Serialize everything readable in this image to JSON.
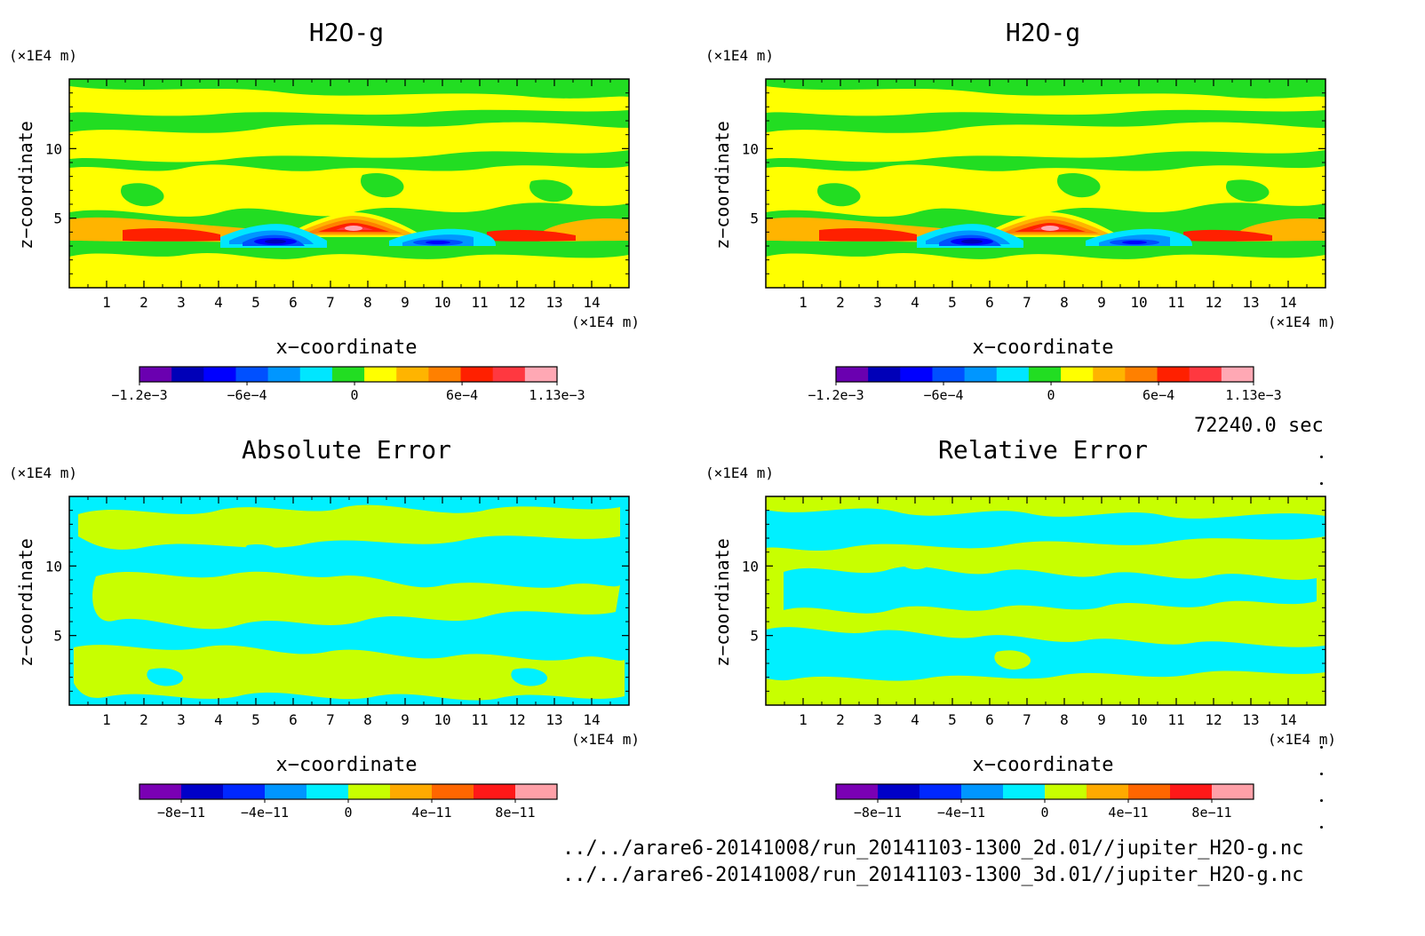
{
  "panels": [
    {
      "id": "p1",
      "title": "H2O-g",
      "unit_y": "(×1E4 m)",
      "unit_x": "(×1E4 m)",
      "xlabel": "x−coordinate",
      "ylabel": "z−coordinate",
      "x_ticks": [
        "1",
        "2",
        "3",
        "4",
        "5",
        "6",
        "7",
        "8",
        "9",
        "10",
        "11",
        "12",
        "13",
        "14"
      ],
      "y_ticks": [
        "5",
        "10"
      ],
      "colorbar_labels": [
        "−1.2e−3",
        "−6e−4",
        "0",
        "6e−4",
        "1.13e−3"
      ]
    },
    {
      "id": "p2",
      "title": "H2O-g",
      "unit_y": "(×1E4 m)",
      "unit_x": "(×1E4 m)",
      "xlabel": "x−coordinate",
      "ylabel": "z−coordinate",
      "x_ticks": [
        "1",
        "2",
        "3",
        "4",
        "5",
        "6",
        "7",
        "8",
        "9",
        "10",
        "11",
        "12",
        "13",
        "14"
      ],
      "y_ticks": [
        "5",
        "10"
      ],
      "colorbar_labels": [
        "−1.2e−3",
        "−6e−4",
        "0",
        "6e−4",
        "1.13e−3"
      ]
    },
    {
      "id": "p3",
      "title": "Absolute Error",
      "unit_y": "(×1E4 m)",
      "unit_x": "(×1E4 m)",
      "xlabel": "x−coordinate",
      "ylabel": "z−coordinate",
      "x_ticks": [
        "1",
        "2",
        "3",
        "4",
        "5",
        "6",
        "7",
        "8",
        "9",
        "10",
        "11",
        "12",
        "13",
        "14"
      ],
      "y_ticks": [
        "5",
        "10"
      ],
      "colorbar_labels": [
        "−8e−11",
        "−4e−11",
        "0",
        "4e−11",
        "8e−11"
      ]
    },
    {
      "id": "p4",
      "title": "Relative Error",
      "unit_y": "(×1E4 m)",
      "unit_x": "(×1E4 m)",
      "xlabel": "x−coordinate",
      "ylabel": "z−coordinate",
      "x_ticks": [
        "1",
        "2",
        "3",
        "4",
        "5",
        "6",
        "7",
        "8",
        "9",
        "10",
        "11",
        "12",
        "13",
        "14"
      ],
      "y_ticks": [
        "5",
        "10"
      ],
      "colorbar_labels": [
        "−8e−11",
        "−4e−11",
        "0",
        "4e−11",
        "8e−11"
      ]
    }
  ],
  "time_label": "72240.0 sec",
  "file_paths": [
    "../../arare6-20141008/run_20141103-1300_2d.01//jupiter_H2O-g.nc",
    "../../arare6-20141008/run_20141103-1300_3d.01//jupiter_H2O-g.nc"
  ],
  "chart_data": [
    {
      "type": "heatmap",
      "title": "H2O-g",
      "xlabel": "x−coordinate",
      "ylabel": "z−coordinate",
      "x_unit": "(×1E4 m)",
      "y_unit": "(×1E4 m)",
      "xlim": [
        0,
        15
      ],
      "ylim": [
        0,
        15
      ],
      "colorbar": {
        "min": -0.0012,
        "max": 0.00113,
        "tick_labels": [
          "−1.2e−3",
          "−6e−4",
          "0",
          "6e−4",
          "1.13e−3"
        ],
        "colors": [
          "#6a00b0",
          "#0000b8",
          "#0000ff",
          "#0050ff",
          "#0096ff",
          "#00e6ff",
          "#22dd22",
          "#ffff00",
          "#ffb400",
          "#ff8000",
          "#ff2000",
          "#ff3840",
          "#ffa8b4"
        ]
      },
      "features": [
        {
          "kind": "positive-max",
          "x": 7.5,
          "z": 4.5,
          "value": 0.00113
        },
        {
          "kind": "negative-min",
          "x": 5.0,
          "z": 3.5,
          "value": -0.0012
        },
        {
          "kind": "negative-min",
          "x": 10.0,
          "z": 3.5,
          "value": -0.0009
        },
        {
          "kind": "positive",
          "x": 2.5,
          "z": 3.7,
          "value": 0.0008
        },
        {
          "kind": "positive",
          "x": 12.5,
          "z": 3.7,
          "value": 0.0008
        }
      ]
    },
    {
      "type": "heatmap",
      "title": "H2O-g",
      "xlabel": "x−coordinate",
      "ylabel": "z−coordinate",
      "x_unit": "(×1E4 m)",
      "y_unit": "(×1E4 m)",
      "xlim": [
        0,
        15
      ],
      "ylim": [
        0,
        15
      ],
      "colorbar": {
        "min": -0.0012,
        "max": 0.00113,
        "tick_labels": [
          "−1.2e−3",
          "−6e−4",
          "0",
          "6e−4",
          "1.13e−3"
        ],
        "colors": [
          "#6a00b0",
          "#0000b8",
          "#0000ff",
          "#0050ff",
          "#0096ff",
          "#00e6ff",
          "#22dd22",
          "#ffff00",
          "#ffb400",
          "#ff8000",
          "#ff2000",
          "#ff3840",
          "#ffa8b4"
        ]
      },
      "features": [
        {
          "kind": "positive-max",
          "x": 7.5,
          "z": 4.5,
          "value": 0.00113
        },
        {
          "kind": "negative-min",
          "x": 5.0,
          "z": 3.5,
          "value": -0.0012
        },
        {
          "kind": "negative-min",
          "x": 10.0,
          "z": 3.5,
          "value": -0.0009
        },
        {
          "kind": "positive",
          "x": 2.5,
          "z": 3.7,
          "value": 0.0008
        },
        {
          "kind": "positive",
          "x": 12.5,
          "z": 3.7,
          "value": 0.0008
        }
      ]
    },
    {
      "type": "heatmap",
      "title": "Absolute Error",
      "xlabel": "x−coordinate",
      "ylabel": "z−coordinate",
      "x_unit": "(×1E4 m)",
      "y_unit": "(×1E4 m)",
      "xlim": [
        0,
        15
      ],
      "ylim": [
        0,
        15
      ],
      "colorbar": {
        "min": -1e-10,
        "max": 1e-10,
        "tick_labels": [
          "−8e−11",
          "−4e−11",
          "0",
          "4e−11",
          "8e−11"
        ],
        "colors": [
          "#7a00b4",
          "#0000c8",
          "#0028ff",
          "#0096ff",
          "#00f0ff",
          "#c8ff00",
          "#ffaa00",
          "#ff6600",
          "#ff1818",
          "#ffa0a8"
        ]
      },
      "values_present": [
        "#00f0ff",
        "#c8ff00"
      ]
    },
    {
      "type": "heatmap",
      "title": "Relative Error",
      "xlabel": "x−coordinate",
      "ylabel": "z−coordinate",
      "x_unit": "(×1E4 m)",
      "y_unit": "(×1E4 m)",
      "xlim": [
        0,
        15
      ],
      "ylim": [
        0,
        15
      ],
      "colorbar": {
        "min": -1e-10,
        "max": 1e-10,
        "tick_labels": [
          "−8e−11",
          "−4e−11",
          "0",
          "4e−11",
          "8e−11"
        ],
        "colors": [
          "#7a00b4",
          "#0000c8",
          "#0028ff",
          "#0096ff",
          "#00f0ff",
          "#c8ff00",
          "#ffaa00",
          "#ff6600",
          "#ff1818",
          "#ffa0a8"
        ]
      },
      "values_present": [
        "#00f0ff",
        "#c8ff00"
      ]
    }
  ]
}
